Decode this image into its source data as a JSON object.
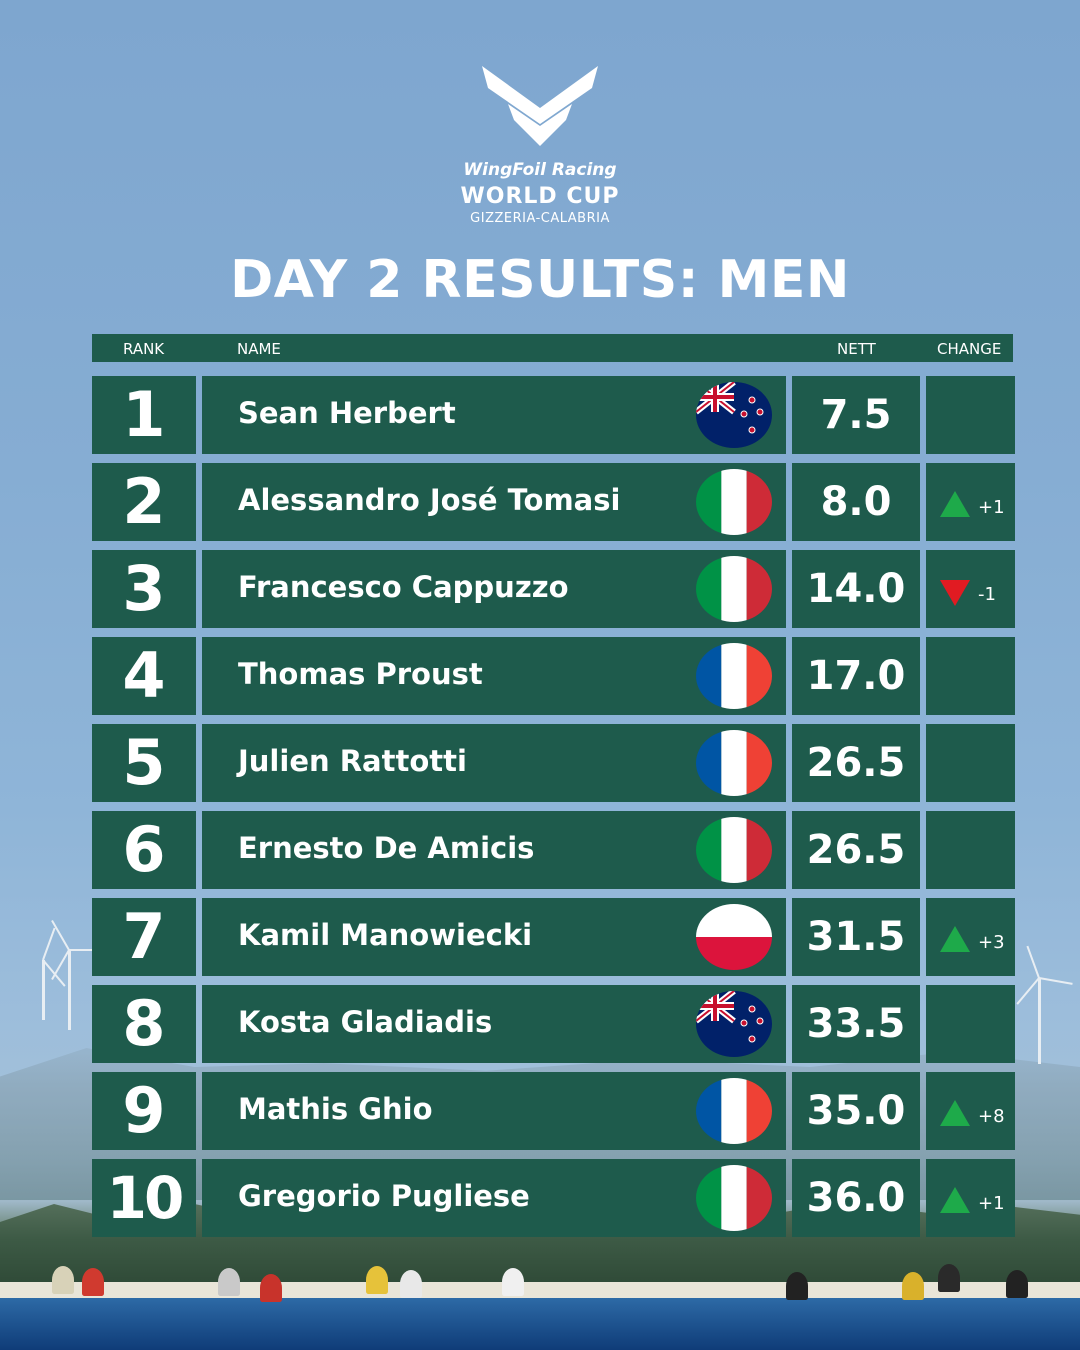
{
  "brand": {
    "line1": "WingFoil Racing",
    "line2": "WORLD CUP",
    "line3": "GIZZERIA-CALABRIA"
  },
  "title": "DAY 2 RESULTS: MEN",
  "columns": {
    "rank": "RANK",
    "name": "NAME",
    "nett": "NETT",
    "change": "CHANGE"
  },
  "rows": [
    {
      "rank": "1",
      "name": "Sean Herbert",
      "flag": "nz-flag-icon",
      "nett": "7.5",
      "change": "",
      "direction": ""
    },
    {
      "rank": "2",
      "name": "Alessandro José Tomasi",
      "flag": "it-flag-icon",
      "nett": "8.0",
      "change": "+1",
      "direction": "up"
    },
    {
      "rank": "3",
      "name": "Francesco Cappuzzo",
      "flag": "it-flag-icon",
      "nett": "14.0",
      "change": "-1",
      "direction": "down"
    },
    {
      "rank": "4",
      "name": "Thomas Proust",
      "flag": "fr-flag-icon",
      "nett": "17.0",
      "change": "",
      "direction": ""
    },
    {
      "rank": "5",
      "name": "Julien Rattotti",
      "flag": "fr-flag-icon",
      "nett": "26.5",
      "change": "",
      "direction": ""
    },
    {
      "rank": "6",
      "name": "Ernesto De Amicis",
      "flag": "it-flag-icon",
      "nett": "26.5",
      "change": "",
      "direction": ""
    },
    {
      "rank": "7",
      "name": "Kamil Manowiecki",
      "flag": "pl-flag-icon",
      "nett": "31.5",
      "change": "+3",
      "direction": "up"
    },
    {
      "rank": "8",
      "name": "Kosta Gladiadis",
      "flag": "nz-flag-icon",
      "nett": "33.5",
      "change": "",
      "direction": ""
    },
    {
      "rank": "9",
      "name": "Mathis Ghio",
      "flag": "fr-flag-icon",
      "nett": "35.0",
      "change": "+8",
      "direction": "up"
    },
    {
      "rank": "10",
      "name": "Gregorio Pugliese",
      "flag": "it-flag-icon",
      "nett": "36.0",
      "change": "+1",
      "direction": "up"
    }
  ],
  "colors": {
    "panel": "#1e5b4c",
    "up": "#1eaa4a",
    "down": "#e11b22"
  }
}
